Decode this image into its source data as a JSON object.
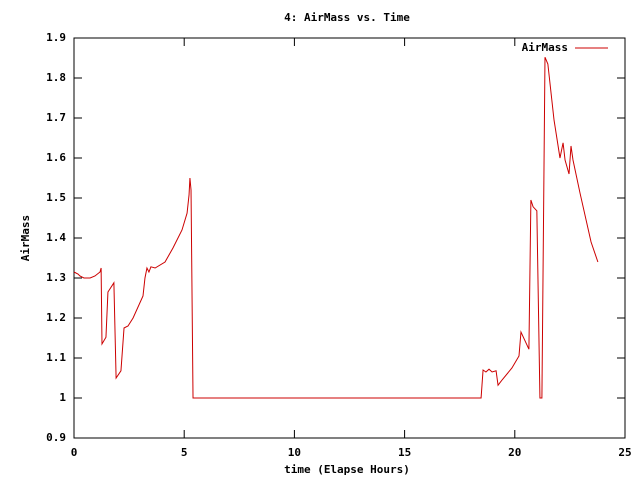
{
  "chart_data": {
    "type": "line",
    "title": "4: AirMass vs. Time",
    "xlabel": "time (Elapse Hours)",
    "ylabel": "AirMass",
    "xlim": [
      0,
      25
    ],
    "xticks": [
      0,
      5,
      10,
      15,
      20,
      25
    ],
    "ylim": [
      0.9,
      1.9
    ],
    "yticks": [
      0.9,
      1,
      1.1,
      1.2,
      1.3,
      1.4,
      1.5,
      1.6,
      1.7,
      1.8,
      1.9
    ],
    "legend": "top-right",
    "series": [
      {
        "name": "AirMass",
        "color": "#cc0000",
        "x": [
          0,
          0.18,
          0.27,
          0.45,
          0.73,
          0.95,
          1.18,
          1.23,
          1.27,
          1.45,
          1.54,
          1.81,
          1.91,
          2.13,
          2.27,
          2.45,
          2.68,
          3.13,
          3.22,
          3.31,
          3.4,
          3.49,
          3.68,
          4.13,
          4.49,
          4.9,
          5.13,
          5.22,
          5.26,
          5.31,
          5.4,
          18.47,
          18.56,
          18.69,
          18.83,
          18.97,
          19.15,
          19.24,
          19.42,
          19.87,
          20.19,
          20.28,
          20.64,
          20.73,
          20.83,
          21.0,
          21.14,
          21.23,
          21.37,
          21.5,
          21.78,
          22.05,
          22.19,
          22.28,
          22.46,
          22.55,
          22.64,
          22.96,
          23.46,
          23.77
        ],
        "values": [
          1.315,
          1.31,
          1.305,
          1.3,
          1.3,
          1.305,
          1.315,
          1.325,
          1.135,
          1.152,
          1.265,
          1.288,
          1.05,
          1.068,
          1.175,
          1.18,
          1.2,
          1.255,
          1.3,
          1.325,
          1.315,
          1.328,
          1.325,
          1.34,
          1.375,
          1.42,
          1.462,
          1.508,
          1.55,
          1.52,
          1.0,
          1.0,
          1.07,
          1.065,
          1.072,
          1.065,
          1.068,
          1.032,
          1.045,
          1.075,
          1.105,
          1.165,
          1.122,
          1.495,
          1.478,
          1.468,
          1.0,
          1.0,
          1.852,
          1.835,
          1.695,
          1.6,
          1.638,
          1.595,
          1.56,
          1.63,
          1.595,
          1.512,
          1.39,
          1.34
        ]
      }
    ]
  }
}
